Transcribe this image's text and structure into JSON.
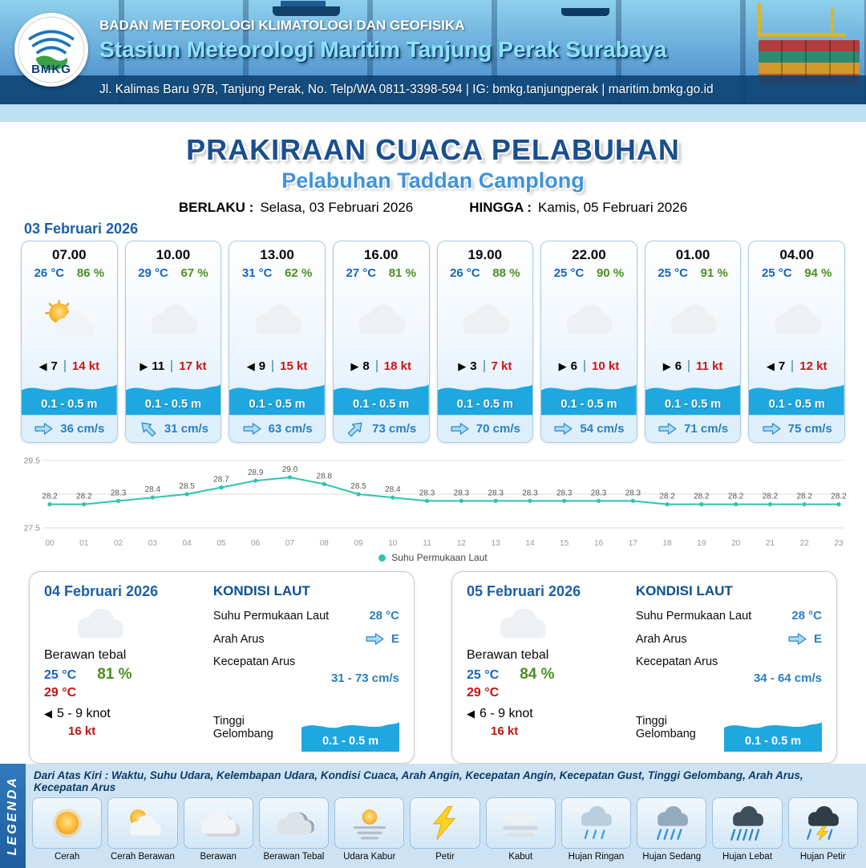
{
  "header": {
    "logo_text": "BMKG",
    "agency": "BADAN METEOROLOGI KLIMATOLOGI DAN GEOFISIKA",
    "station": "Stasiun Meteorologi Maritim Tanjung Perak Surabaya",
    "address": "Jl. Kalimas Baru 97B, Tanjung Perak, No. Telp/WA 0811-3398-594 | IG: bmkg.tanjungperak | maritim.bmkg.go.id"
  },
  "title": {
    "main": "PRAKIRAAN CUACA PELABUHAN",
    "sub": "Pelabuhan Taddan Camplong",
    "valid_label": "BERLAKU :",
    "valid_value": "Selasa, 03 Februari 2026",
    "until_label": "HINGGA :",
    "until_value": "Kamis, 05 Februari 2026"
  },
  "forecast": {
    "date": "03 Februari 2026",
    "cards": [
      {
        "time": "07.00",
        "temp": "26 °C",
        "rh": "86 %",
        "icon": "cerah-berawan",
        "barb": "◀",
        "wind": "7",
        "gust": "14 kt",
        "wave": "0.1 - 0.5 m",
        "current_dir": "E",
        "current": "36 cm/s"
      },
      {
        "time": "10.00",
        "temp": "29 °C",
        "rh": "67 %",
        "icon": "berawan",
        "barb": "▶",
        "wind": "11",
        "gust": "17 kt",
        "wave": "0.1 - 0.5 m",
        "current_dir": "NW",
        "current": "31 cm/s"
      },
      {
        "time": "13.00",
        "temp": "31 °C",
        "rh": "62 %",
        "icon": "berawan",
        "barb": "◀",
        "wind": "9",
        "gust": "15 kt",
        "wave": "0.1 - 0.5 m",
        "current_dir": "E",
        "current": "63 cm/s"
      },
      {
        "time": "16.00",
        "temp": "27 °C",
        "rh": "81 %",
        "icon": "berawan",
        "barb": "▶",
        "wind": "8",
        "gust": "18 kt",
        "wave": "0.1 - 0.5 m",
        "current_dir": "NE",
        "current": "73 cm/s"
      },
      {
        "time": "19.00",
        "temp": "26 °C",
        "rh": "88 %",
        "icon": "berawan",
        "barb": "▶",
        "wind": "3",
        "gust": "7 kt",
        "wave": "0.1 - 0.5 m",
        "current_dir": "E",
        "current": "70 cm/s"
      },
      {
        "time": "22.00",
        "temp": "25 °C",
        "rh": "90 %",
        "icon": "berawan",
        "barb": "▶",
        "wind": "6",
        "gust": "10 kt",
        "wave": "0.1 - 0.5 m",
        "current_dir": "E",
        "current": "54 cm/s"
      },
      {
        "time": "01.00",
        "temp": "25 °C",
        "rh": "91 %",
        "icon": "berawan",
        "barb": "▶",
        "wind": "6",
        "gust": "11 kt",
        "wave": "0.1 - 0.5 m",
        "current_dir": "E",
        "current": "71 cm/s"
      },
      {
        "time": "04.00",
        "temp": "25 °C",
        "rh": "94 %",
        "icon": "berawan",
        "barb": "◀",
        "wind": "7",
        "gust": "12 kt",
        "wave": "0.1 - 0.5 m",
        "current_dir": "E",
        "current": "75 cm/s"
      }
    ]
  },
  "chart_data": {
    "type": "line",
    "title": "",
    "x": [
      "00",
      "01",
      "02",
      "03",
      "04",
      "05",
      "06",
      "07",
      "08",
      "09",
      "10",
      "11",
      "12",
      "13",
      "14",
      "15",
      "16",
      "17",
      "18",
      "19",
      "20",
      "21",
      "22",
      "23"
    ],
    "series": [
      {
        "name": "Suhu Permukaan Laut",
        "values": [
          28.2,
          28.2,
          28.3,
          28.4,
          28.5,
          28.7,
          28.9,
          29.0,
          28.8,
          28.5,
          28.4,
          28.3,
          28.3,
          28.3,
          28.3,
          28.3,
          28.3,
          28.3,
          28.2,
          28.2,
          28.2,
          28.2,
          28.2,
          28.2
        ]
      }
    ],
    "ylim": [
      27.5,
      29.5
    ],
    "yticks": [
      29.5,
      27.5
    ],
    "gridlines": [
      29.5,
      28.5,
      27.5
    ],
    "legend_position": "bottom",
    "line_color": "#2fc4ae"
  },
  "days": [
    {
      "date": "04 Februari 2026",
      "condition": "Berawan tebal",
      "icon": "berawan-tebal",
      "temp_min": "25 °C",
      "rh": "81 %",
      "temp_max": "29 °C",
      "wind_barb": "◀",
      "wind": "5  - 9 knot",
      "gust": "16 kt",
      "sea": {
        "title": "KONDISI LAUT",
        "sst_label": "Suhu Permukaan Laut",
        "sst": "28 °C",
        "dir_label": "Arah Arus",
        "dir": "E",
        "speed_label": "Kecepatan Arus",
        "speed": "31  - 73 cm/s",
        "wave_label": "Tinggi Gelombang",
        "wave": "0.1 - 0.5 m"
      }
    },
    {
      "date": "05 Februari 2026",
      "condition": "Berawan tebal",
      "icon": "berawan-tebal",
      "temp_min": "25 °C",
      "rh": "84 %",
      "temp_max": "29 °C",
      "wind_barb": "◀",
      "wind": "6  - 9 knot",
      "gust": "16 kt",
      "sea": {
        "title": "KONDISI LAUT",
        "sst_label": "Suhu Permukaan Laut",
        "sst": "28 °C",
        "dir_label": "Arah Arus",
        "dir": "E",
        "speed_label": "Kecepatan Arus",
        "speed": "34  - 64 cm/s",
        "wave_label": "Tinggi Gelombang",
        "wave": "0.1 - 0.5 m"
      }
    }
  ],
  "legend": {
    "vertical_label": "LEGENDA",
    "description": "Dari Atas Kiri : Waktu, Suhu Udara, Kelembapan Udara, Kondisi Cuaca, Arah Angin, Kecepatan Angin, Kecepatan Gust, Tinggi Gelombang, Arah Arus, Kecepatan Arus",
    "items": [
      {
        "label": "Cerah",
        "icon": "cerah"
      },
      {
        "label": "Cerah Berawan",
        "icon": "cerah-berawan"
      },
      {
        "label": "Berawan",
        "icon": "berawan"
      },
      {
        "label": "Berawan Tebal",
        "icon": "berawan-tebal"
      },
      {
        "label": "Udara Kabur",
        "icon": "udara-kabur"
      },
      {
        "label": "Petir",
        "icon": "petir"
      },
      {
        "label": "Kabut",
        "icon": "kabut"
      },
      {
        "label": "Hujan Ringan",
        "icon": "hujan-ringan"
      },
      {
        "label": "Hujan Sedang",
        "icon": "hujan-sedang"
      },
      {
        "label": "Hujan Lebat",
        "icon": "hujan-lebat"
      },
      {
        "label": "Hujan Petir",
        "icon": "hujan-petir"
      }
    ]
  },
  "colors": {
    "accent_blue": "#1b5e9e",
    "temp_blue": "#1565c0",
    "humidity_green": "#4a8f1f",
    "gust_red": "#d11212",
    "wave_blue": "#1fa7e0",
    "sst_line_teal": "#2fc4ae"
  }
}
